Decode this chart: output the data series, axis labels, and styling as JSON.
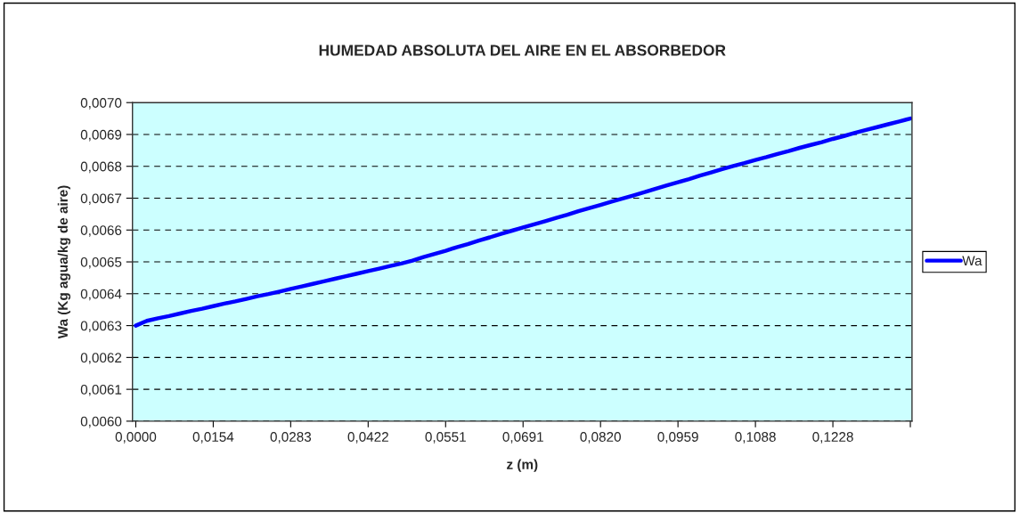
{
  "chart_data": {
    "type": "line",
    "title": "HUMEDAD ABSOLUTA DEL AIRE EN EL ABSORBEDOR",
    "xlabel": "z (m)",
    "ylabel": "Wa (Kg agua/kg de aire)",
    "categories": [
      "0,0000",
      null,
      null,
      null,
      null,
      null,
      null,
      "0,0154",
      null,
      null,
      null,
      null,
      null,
      null,
      "0,0283",
      null,
      null,
      null,
      null,
      null,
      null,
      "0,0422",
      null,
      null,
      null,
      null,
      null,
      null,
      "0,0551",
      null,
      null,
      null,
      null,
      null,
      null,
      "0,0691",
      null,
      null,
      null,
      null,
      null,
      null,
      "0,0820",
      null,
      null,
      null,
      null,
      null,
      null,
      "0,0959",
      null,
      null,
      null,
      null,
      null,
      null,
      "0,1088",
      null,
      null,
      null,
      null,
      null,
      null,
      "0,1228",
      null,
      null,
      null,
      null,
      null,
      null,
      null
    ],
    "series": [
      {
        "name": "Wa",
        "color": "#0000ff",
        "values": [
          0.0063,
          0.006315,
          0.006323,
          0.00633,
          0.006338,
          0.006346,
          0.006353,
          0.006361,
          0.006369,
          0.006376,
          0.006384,
          0.006392,
          0.006399,
          0.006407,
          0.006415,
          0.006423,
          0.006431,
          0.006439,
          0.006447,
          0.006455,
          0.006463,
          0.006471,
          0.006479,
          0.006487,
          0.006495,
          0.006504,
          0.006515,
          0.006525,
          0.006535,
          0.006546,
          0.006556,
          0.006567,
          0.006577,
          0.006588,
          0.006598,
          0.006608,
          0.006618,
          0.006628,
          0.006638,
          0.006648,
          0.006659,
          0.006669,
          0.006679,
          0.006689,
          0.006699,
          0.006709,
          0.006719,
          0.00673,
          0.00674,
          0.00675,
          0.00676,
          0.006771,
          0.006781,
          0.006791,
          0.006801,
          0.00681,
          0.00682,
          0.006829,
          0.006839,
          0.006848,
          0.006858,
          0.006867,
          0.006876,
          0.006886,
          0.006895,
          0.006905,
          0.006914,
          0.006923,
          0.006932,
          0.006941,
          0.00695
        ]
      }
    ],
    "ylim": [
      0.006,
      0.007
    ],
    "yticks": [
      {
        "value": 0.006,
        "label": "0,0060"
      },
      {
        "value": 0.0061,
        "label": "0,0061"
      },
      {
        "value": 0.0062,
        "label": "0,0062"
      },
      {
        "value": 0.0063,
        "label": "0,0063"
      },
      {
        "value": 0.0064,
        "label": "0,0064"
      },
      {
        "value": 0.0065,
        "label": "0,0065"
      },
      {
        "value": 0.0066,
        "label": "0,0066"
      },
      {
        "value": 0.0067,
        "label": "0,0067"
      },
      {
        "value": 0.0068,
        "label": "0,0068"
      },
      {
        "value": 0.0069,
        "label": "0,0069"
      },
      {
        "value": 0.007,
        "label": "0,0070"
      }
    ],
    "grid": "y",
    "legend": "right",
    "marker": "none",
    "line_style": "solid"
  }
}
